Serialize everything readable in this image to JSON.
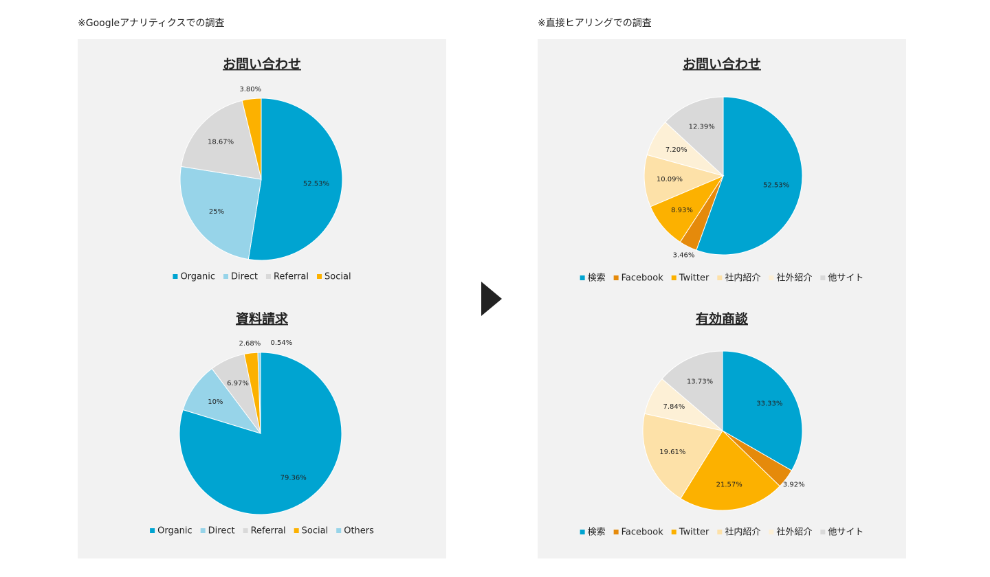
{
  "captions": [
    "※Googleアナリティクスでの調査",
    "※直接ヒアリングでの調査"
  ],
  "chart_data": [
    {
      "type": "pie",
      "title": "お問い合わせ",
      "categories": [
        "Organic",
        "Direct",
        "Referral",
        "Social"
      ],
      "values": [
        52.53,
        25,
        18.67,
        3.8
      ],
      "value_labels": [
        "52.53%",
        "25%",
        "18.67%",
        "3.80%"
      ],
      "colors": [
        "#00a4d1",
        "#97d4e9",
        "#d9d9d9",
        "#fcb100"
      ]
    },
    {
      "type": "pie",
      "title": "資料請求",
      "categories": [
        "Organic",
        "Direct",
        "Referral",
        "Social",
        "Others"
      ],
      "values": [
        79.36,
        10,
        6.97,
        2.68,
        0.54
      ],
      "value_labels": [
        "79.36%",
        "10%",
        "6.97%",
        "2.68%",
        "0.54%"
      ],
      "colors": [
        "#00a4d1",
        "#97d4e9",
        "#d9d9d9",
        "#fcb100",
        "#97d4e9"
      ]
    },
    {
      "type": "pie",
      "title": "お問い合わせ",
      "categories": [
        "検索",
        "Facebook",
        "Twitter",
        "社内紹介",
        "社外紹介",
        "他サイト"
      ],
      "values": [
        52.53,
        3.46,
        8.93,
        10.09,
        7.2,
        12.39
      ],
      "value_labels": [
        "52.53%",
        "3.46%",
        "8.93%",
        "10.09%",
        "7.20%",
        "12.39%"
      ],
      "colors": [
        "#00a4d1",
        "#e58a0b",
        "#fcb100",
        "#fde1a8",
        "#fdf0d6",
        "#d9d9d9"
      ]
    },
    {
      "type": "pie",
      "title": "有効商談",
      "categories": [
        "検索",
        "Facebook",
        "Twitter",
        "社内紹介",
        "社外紹介",
        "他サイト"
      ],
      "values": [
        33.33,
        3.92,
        21.57,
        19.61,
        7.84,
        13.73
      ],
      "value_labels": [
        "33.33%",
        "3.92%",
        "21.57%",
        "19.61%",
        "7.84%",
        "13.73%"
      ],
      "colors": [
        "#00a4d1",
        "#e58a0b",
        "#fcb100",
        "#fde1a8",
        "#fdf0d6",
        "#d9d9d9"
      ]
    }
  ]
}
